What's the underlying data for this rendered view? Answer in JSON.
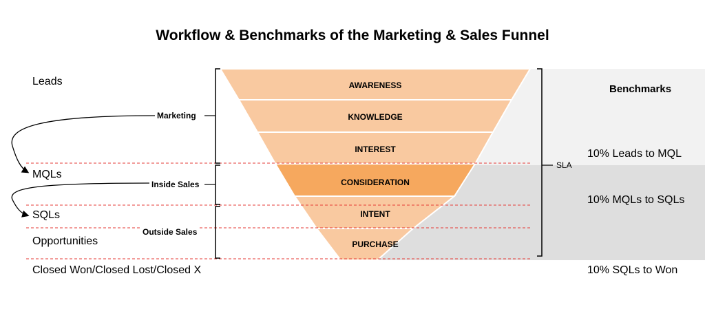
{
  "title": "Workflow & Benchmarks of the Marketing & Sales Funnel",
  "stages": {
    "leads": "Leads",
    "mqls": "MQLs",
    "sqls": "SQLs",
    "opportunities": "Opportunities",
    "closed": "Closed Won/Closed Lost/Closed X"
  },
  "teams": {
    "marketing": "Marketing",
    "inside_sales": "Inside Sales",
    "outside_sales": "Outside Sales"
  },
  "funnel": {
    "bands": [
      "AWARENESS",
      "KNOWLEDGE",
      "INTEREST",
      "CONSIDERATION",
      "INTENT",
      "PURCHASE"
    ]
  },
  "sla_label": "SLA",
  "benchmarks": {
    "title": "Benchmarks",
    "leads_to_mql": "10% Leads to MQL",
    "mqls_to_sqls": "10% MQLs to SQLs",
    "sqls_to_won": "10% SQLs to Won"
  },
  "colors": {
    "light_orange": "#f9c9a0",
    "dark_orange": "#f6a85e",
    "light_gray": "#f2f2f2",
    "mid_gray": "#dedede",
    "dashed_red": "#e53935"
  }
}
